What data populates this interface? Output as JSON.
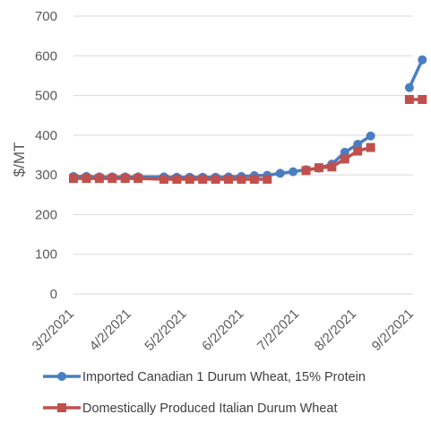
{
  "chart_data": {
    "type": "line",
    "title": "",
    "xlabel": "",
    "ylabel": "$/MT",
    "ylim": [
      0,
      700
    ],
    "yticks": [
      0,
      100,
      200,
      300,
      400,
      500,
      600,
      700
    ],
    "xlim": [
      "2021-03-02",
      "2021-09-02"
    ],
    "xticks": [
      "3/2/2021",
      "4/2/2021",
      "5/2/2021",
      "6/2/2021",
      "7/2/2021",
      "8/2/2021",
      "9/2/2021"
    ],
    "grid": "horizontal",
    "legend_position": "bottom",
    "series": [
      {
        "name": "Imported Canadian 1 Durum Wheat, 15% Protein",
        "color": "#4A7EC2",
        "marker": "circle",
        "segments": [
          [
            {
              "x": "2021-03-02",
              "y": 296
            },
            {
              "x": "2021-03-09",
              "y": 296
            },
            {
              "x": "2021-03-16",
              "y": 295
            },
            {
              "x": "2021-03-23",
              "y": 295
            },
            {
              "x": "2021-03-30",
              "y": 295
            },
            {
              "x": "2021-04-06",
              "y": 295
            },
            {
              "x": "2021-04-20",
              "y": 295
            },
            {
              "x": "2021-04-27",
              "y": 294
            },
            {
              "x": "2021-05-04",
              "y": 294
            },
            {
              "x": "2021-05-11",
              "y": 294
            },
            {
              "x": "2021-05-18",
              "y": 294
            },
            {
              "x": "2021-05-25",
              "y": 295
            },
            {
              "x": "2021-06-01",
              "y": 296
            },
            {
              "x": "2021-06-08",
              "y": 298
            },
            {
              "x": "2021-06-15",
              "y": 299
            },
            {
              "x": "2021-06-22",
              "y": 304
            },
            {
              "x": "2021-06-29",
              "y": 308
            },
            {
              "x": "2021-07-06",
              "y": 313
            },
            {
              "x": "2021-07-13",
              "y": 317
            },
            {
              "x": "2021-07-20",
              "y": 327
            },
            {
              "x": "2021-07-27",
              "y": 357
            },
            {
              "x": "2021-08-03",
              "y": 377
            },
            {
              "x": "2021-08-10",
              "y": 398
            }
          ],
          [
            {
              "x": "2021-08-31",
              "y": 520
            },
            {
              "x": "2021-09-07",
              "y": 590
            }
          ]
        ]
      },
      {
        "name": "Domestically Produced Italian Durum Wheat",
        "color": "#C0504D",
        "marker": "square",
        "segments": [
          [
            {
              "x": "2021-03-02",
              "y": 291
            },
            {
              "x": "2021-03-09",
              "y": 291
            },
            {
              "x": "2021-03-16",
              "y": 291
            },
            {
              "x": "2021-03-23",
              "y": 291
            },
            {
              "x": "2021-03-30",
              "y": 291
            },
            {
              "x": "2021-04-06",
              "y": 291
            },
            {
              "x": "2021-04-20",
              "y": 289
            },
            {
              "x": "2021-04-27",
              "y": 289
            },
            {
              "x": "2021-05-04",
              "y": 289
            },
            {
              "x": "2021-05-11",
              "y": 289
            },
            {
              "x": "2021-05-18",
              "y": 289
            },
            {
              "x": "2021-05-25",
              "y": 289
            },
            {
              "x": "2021-06-01",
              "y": 289
            },
            {
              "x": "2021-06-08",
              "y": 289
            },
            {
              "x": "2021-06-15",
              "y": 289
            }
          ],
          [
            {
              "x": "2021-07-06",
              "y": 311
            },
            {
              "x": "2021-07-13",
              "y": 318
            },
            {
              "x": "2021-07-20",
              "y": 320
            },
            {
              "x": "2021-07-27",
              "y": 340
            },
            {
              "x": "2021-08-03",
              "y": 360
            },
            {
              "x": "2021-08-10",
              "y": 369
            }
          ],
          [
            {
              "x": "2021-08-31",
              "y": 490
            },
            {
              "x": "2021-09-07",
              "y": 490
            }
          ]
        ]
      }
    ]
  }
}
